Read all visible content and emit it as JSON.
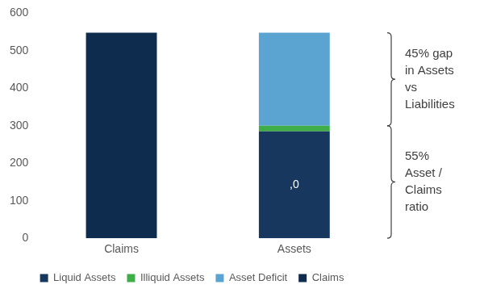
{
  "chart_data": {
    "type": "bar",
    "stacked": true,
    "grid": false,
    "legend": "bottom",
    "categories": [
      "Claims",
      "Assets"
    ],
    "series": [
      {
        "name": "Liquid Assets",
        "color": "#17375e",
        "values": [
          null,
          285
        ]
      },
      {
        "name": "Illiquid Assets",
        "color": "#3fae49",
        "values": [
          null,
          15
        ]
      },
      {
        "name": "Asset Deficit",
        "color": "#5ba4d2",
        "values": [
          null,
          248
        ]
      },
      {
        "name": "Claims",
        "color": "#0e2c4e",
        "values": [
          548,
          null
        ]
      }
    ],
    "ylim": [
      0,
      600
    ],
    "yticks": [
      0,
      100,
      200,
      300,
      400,
      500,
      600
    ],
    "annotations": [
      {
        "text": [
          "45% gap",
          "in Assets",
          "vs",
          "Liabilities"
        ],
        "category": "Assets",
        "series": [
          "Asset Deficit"
        ]
      },
      {
        "text": [
          "55%",
          "Asset /",
          "Claims",
          "ratio"
        ],
        "category": "Assets",
        "series": [
          "Liquid Assets",
          "Illiquid Assets"
        ]
      },
      {
        "text": ",0",
        "category": "Assets",
        "series": [
          "Liquid Assets"
        ]
      }
    ]
  }
}
